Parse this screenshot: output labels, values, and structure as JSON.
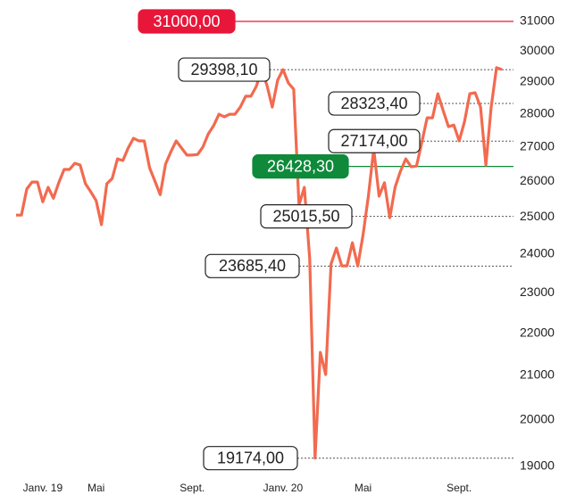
{
  "chart_data": {
    "type": "line",
    "categories": [
      null,
      null,
      null,
      null,
      null,
      "Janv. 19",
      null,
      null,
      null,
      null,
      null,
      null,
      null,
      null,
      null,
      "Mai",
      null,
      null,
      null,
      null,
      null,
      null,
      null,
      null,
      null,
      null,
      null,
      null,
      null,
      null,
      null,
      null,
      null,
      "Sept.",
      null,
      null,
      null,
      null,
      null,
      null,
      null,
      null,
      null,
      null,
      null,
      null,
      null,
      null,
      null,
      null,
      "Janv. 20",
      null,
      null,
      null,
      null,
      null,
      null,
      null,
      null,
      null,
      null,
      null,
      null,
      null,
      null,
      "Mai",
      null,
      null,
      null,
      null,
      null,
      null,
      null,
      null,
      null,
      null,
      null,
      null,
      null,
      null,
      null,
      null,
      null,
      "Sept.",
      null,
      null,
      null,
      null,
      null,
      null,
      null,
      null
    ],
    "series": [
      {
        "color": "#f26a4f",
        "values": [
          25050,
          25050,
          25780,
          25980,
          25980,
          25420,
          25830,
          25520,
          25960,
          26340,
          26340,
          26520,
          26470,
          25930,
          25700,
          25450,
          24790,
          25930,
          26080,
          26650,
          26600,
          26970,
          27260,
          27180,
          27180,
          26390,
          26010,
          25620,
          26500,
          26860,
          27180,
          26970,
          26760,
          26760,
          26780,
          27000,
          27390,
          27640,
          27990,
          27910,
          27990,
          27990,
          28210,
          28550,
          28550,
          28860,
          29398.1,
          28890,
          28210,
          29060,
          29400,
          28970,
          28770,
          25330,
          25830,
          23880,
          19174,
          21540,
          21020,
          23740,
          24160,
          23690,
          23690,
          24300,
          23685.4,
          24520,
          25580,
          26940,
          25580,
          25960,
          24980,
          25830,
          26290,
          26650,
          26420,
          26440,
          27130,
          27880,
          27880,
          28630,
          28110,
          27610,
          27660,
          27180,
          27770,
          28630,
          28660,
          28210,
          26470,
          28210,
          29460,
          29400
        ]
      }
    ],
    "ylim": [
      19000,
      31000
    ],
    "yticks": [
      19000,
      20000,
      21000,
      22000,
      23000,
      24000,
      25000,
      26000,
      27000,
      28000,
      29000,
      30000,
      31000
    ],
    "log_scale": true,
    "annotations": [
      {
        "value": 31000,
        "label": "31000,00",
        "color": "#e8173a",
        "line": "solid"
      },
      {
        "value": 29398.1,
        "label": "29398,10",
        "line": "dotted"
      },
      {
        "value": 28323.4,
        "label": "28323,40",
        "line": "dotted"
      },
      {
        "value": 27174,
        "label": "27174,00",
        "line": "dotted"
      },
      {
        "value": 26428.3,
        "label": "26428,30",
        "color": "#0e8a3a",
        "line": "solid"
      },
      {
        "value": 25015.5,
        "label": "25015,50",
        "line": "dotted"
      },
      {
        "value": 23685.4,
        "label": "23685,40",
        "line": "dotted"
      },
      {
        "value": 19174,
        "label": "19174,00",
        "line": "dotted"
      }
    ]
  }
}
